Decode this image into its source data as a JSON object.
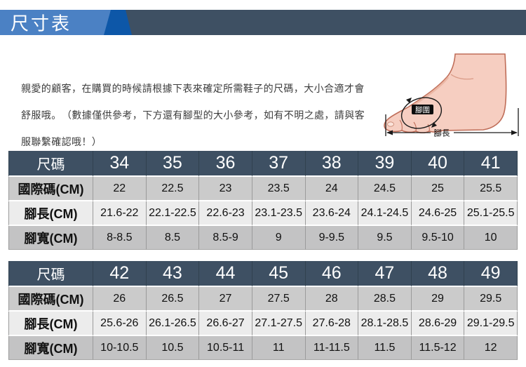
{
  "banner": {
    "title": "尺寸表"
  },
  "intro": {
    "text": "親愛的顧客，在購買的時候請根據下表來確定所需鞋子的尺碼，大小合適才會舒服哦。　（數據僅供參考，下方還有腳型的大小參考，如有不明之處，請與客服聯繫確認哦！）"
  },
  "foot_diagram": {
    "girth_label": "腳圍",
    "length_label": "腳長"
  },
  "colors": {
    "banner_light_blue": "#4b81c4",
    "banner_dark_blue": "#0d57a8",
    "banner_slate": "#3e5063",
    "table_header_bg": "#3e5063",
    "row_gray": "#cbcbcb",
    "row_light": "#ececec",
    "row_dark_gray": "#c3c3c4",
    "foot_skin": "#f6cec1",
    "foot_outline": "#bf6d58"
  },
  "tables": [
    {
      "header": [
        "尺碼",
        "34",
        "35",
        "36",
        "37",
        "38",
        "39",
        "40",
        "41"
      ],
      "rows": [
        {
          "label": "國際碼(CM)",
          "values": [
            "22",
            "22.5",
            "23",
            "23.5",
            "24",
            "24.5",
            "25",
            "25.5"
          ]
        },
        {
          "label": "腳長(CM)",
          "values": [
            "21.6-22",
            "22.1-22.5",
            "22.6-23",
            "23.1-23.5",
            "23.6-24",
            "24.1-24.5",
            "24.6-25",
            "25.1-25.5"
          ]
        },
        {
          "label": "腳寬(CM)",
          "values": [
            "8-8.5",
            "8.5",
            "8.5-9",
            "9",
            "9-9.5",
            "9.5",
            "9.5-10",
            "10"
          ]
        }
      ]
    },
    {
      "header": [
        "尺碼",
        "42",
        "43",
        "44",
        "45",
        "46",
        "47",
        "48",
        "49"
      ],
      "rows": [
        {
          "label": "國際碼(CM)",
          "values": [
            "26",
            "26.5",
            "27",
            "27.5",
            "28",
            "28.5",
            "29",
            "29.5"
          ]
        },
        {
          "label": "腳長(CM)",
          "values": [
            "25.6-26",
            "26.1-26.5",
            "26.6-27",
            "27.1-27.5",
            "27.6-28",
            "28.1-28.5",
            "28.6-29",
            "29.1-29.5"
          ]
        },
        {
          "label": "腳寬(CM)",
          "values": [
            "10-10.5",
            "10.5",
            "10.5-11",
            "11",
            "11-11.5",
            "11.5",
            "11.5-12",
            "12"
          ]
        }
      ]
    }
  ]
}
